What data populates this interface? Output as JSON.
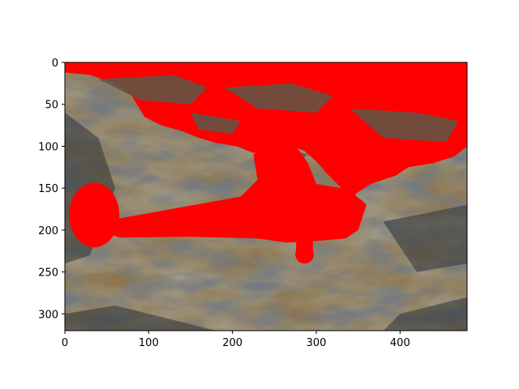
{
  "chart_data": {
    "type": "heatmap",
    "title": "",
    "xlabel": "",
    "ylabel": "",
    "xlim": [
      0,
      480
    ],
    "ylim": [
      320,
      0
    ],
    "y_inverted": true,
    "xticks": [
      0,
      100,
      200,
      300,
      400
    ],
    "yticks": [
      0,
      50,
      100,
      150,
      200,
      250,
      300
    ],
    "grid": false,
    "legend": "none",
    "image_content": "grayscale-tinted photograph of cloudy sky with a biplane silhouette; sky and aircraft regions overlaid in solid red mask",
    "colors": {
      "mask": "#ff0000",
      "cloud_dark": "#2e3338",
      "cloud_mid": "#5a5848",
      "cloud_light": "#8c7650",
      "axis": "#000000"
    }
  }
}
